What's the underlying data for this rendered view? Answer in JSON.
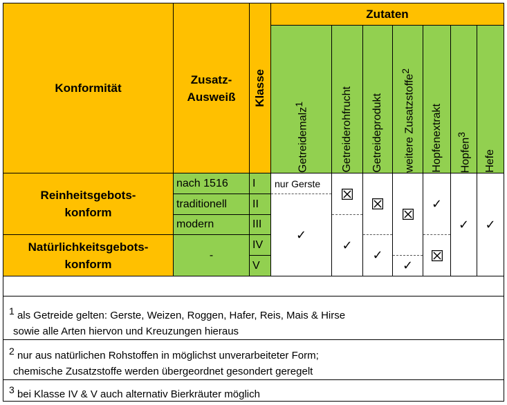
{
  "headers": {
    "konformitaet": "Konformität",
    "zusatz_ausweis_line1": "Zusatz-",
    "zusatz_ausweis_line2": "Ausweiß",
    "klasse": "Klasse",
    "zutaten": "Zutaten"
  },
  "ingredients": [
    {
      "label": "Getreidemalz",
      "sup": "1"
    },
    {
      "label": "Getreiderohfrucht",
      "sup": ""
    },
    {
      "label": "Getreideprodukt",
      "sup": ""
    },
    {
      "label": "weitere Zusatzstoffe",
      "sup": "2"
    },
    {
      "label": "Hopfenextrakt",
      "sup": ""
    },
    {
      "label": "Hopfen",
      "sup": "3"
    },
    {
      "label": "Hefe",
      "sup": ""
    }
  ],
  "groups": [
    {
      "line1": "Reinheitsgebots-",
      "line2": "konform"
    },
    {
      "line1": "Natürlichkeitsgebots-",
      "line2": "konform"
    }
  ],
  "ausweis": [
    "nach 1516",
    "traditionell",
    "modern",
    "-"
  ],
  "klassen": [
    "I",
    "II",
    "III",
    "IV",
    "V"
  ],
  "cells": {
    "nur_gerste": "nur Gerste",
    "tick": "✓"
  },
  "footnotes": [
    {
      "sup": "1",
      "line1": "als Getreide gelten: Gerste, Weizen, Roggen, Hafer, Reis, Mais & Hirse",
      "line2": "sowie alle Arten hiervon und Kreuzungen hieraus"
    },
    {
      "sup": "2",
      "line1": "nur aus natürlichen Rohstoffen in möglichst unverarbeiteter Form;",
      "line2": "chemische Zusatzstoffe werden übergeordnet gesondert geregelt"
    },
    {
      "sup": "3",
      "line1": "bei Klasse IV & V auch alternativ Bierkräuter möglich",
      "line2": ""
    }
  ],
  "colors": {
    "orange": "#ffc000",
    "green": "#92d050"
  }
}
